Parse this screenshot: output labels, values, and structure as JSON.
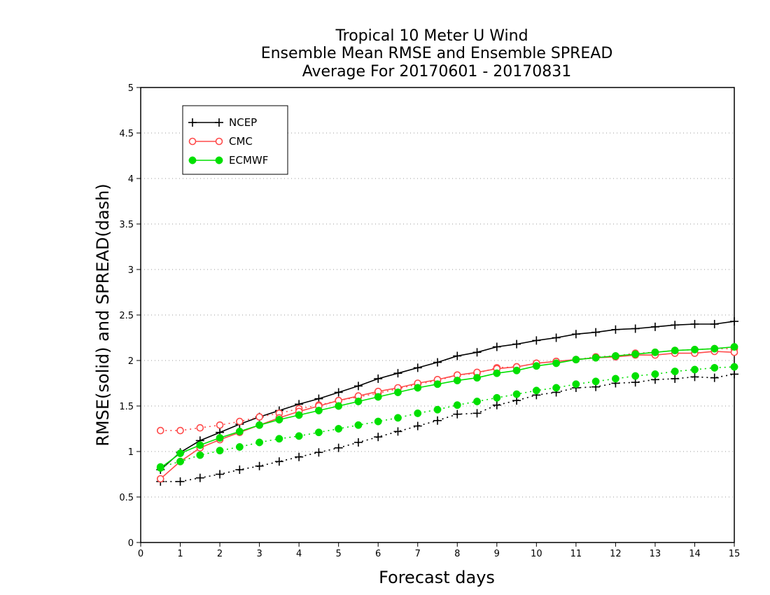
{
  "chart_data": {
    "type": "line",
    "title_lines": [
      "Tropical 10 Meter U Wind",
      "Ensemble Mean RMSE and Ensemble SPREAD",
      "Average For 20170601 - 20170831"
    ],
    "xlabel": "Forecast days",
    "ylabel": "RMSE(solid) and SPREAD(dash)",
    "xlim": [
      0,
      15
    ],
    "ylim": [
      0,
      5
    ],
    "x_ticks": [
      "0",
      "1",
      "2",
      "3",
      "4",
      "5",
      "6",
      "7",
      "8",
      "9",
      "10",
      "11",
      "12",
      "13",
      "14",
      "15"
    ],
    "y_ticks": [
      "0",
      "0.5",
      "1",
      "1.5",
      "2",
      "2.5",
      "3",
      "3.5",
      "4",
      "4.5",
      "5"
    ],
    "grid": "horizontal dotted",
    "legend_position": "top-left",
    "x": [
      0.5,
      1,
      1.5,
      2,
      2.5,
      3,
      3.5,
      4,
      4.5,
      5,
      5.5,
      6,
      6.5,
      7,
      7.5,
      8,
      8.5,
      9,
      9.5,
      10,
      10.5,
      11,
      11.5,
      12,
      12.5,
      13,
      13.5,
      14,
      14.5,
      15
    ],
    "series": [
      {
        "name": "NCEP",
        "color": "#000000",
        "marker": "plus",
        "rmse": [
          0.8,
          0.99,
          1.12,
          1.21,
          1.3,
          1.38,
          1.45,
          1.52,
          1.58,
          1.65,
          1.72,
          1.8,
          1.86,
          1.92,
          1.98,
          2.05,
          2.09,
          2.15,
          2.18,
          2.22,
          2.25,
          2.29,
          2.31,
          2.34,
          2.35,
          2.37,
          2.39,
          2.4,
          2.4,
          2.43
        ],
        "spread": [
          0.67,
          0.67,
          0.71,
          0.75,
          0.8,
          0.84,
          0.89,
          0.94,
          0.99,
          1.04,
          1.1,
          1.16,
          1.22,
          1.28,
          1.34,
          1.41,
          1.42,
          1.51,
          1.56,
          1.62,
          1.65,
          1.7,
          1.71,
          1.75,
          1.76,
          1.79,
          1.8,
          1.82,
          1.81,
          1.85
        ]
      },
      {
        "name": "CMC",
        "color": "#ff4a4a",
        "marker": "open-circle",
        "rmse": [
          0.7,
          0.89,
          1.04,
          1.13,
          1.21,
          1.29,
          1.37,
          1.44,
          1.5,
          1.56,
          1.61,
          1.66,
          1.7,
          1.75,
          1.79,
          1.84,
          1.87,
          1.91,
          1.93,
          1.97,
          1.99,
          2.01,
          2.03,
          2.04,
          2.06,
          2.06,
          2.08,
          2.08,
          2.1,
          2.09
        ],
        "spread": [
          1.23,
          1.23,
          1.26,
          1.29,
          1.33,
          1.38,
          1.42,
          1.47,
          1.51,
          1.56,
          1.6,
          1.64,
          1.69,
          1.74,
          1.78,
          1.84,
          1.86,
          1.92,
          1.93,
          1.97,
          1.99,
          2.01,
          2.04,
          2.05,
          2.08,
          2.09,
          2.11,
          2.12,
          2.13,
          2.13
        ]
      },
      {
        "name": "ECMWF",
        "color": "#00e000",
        "marker": "filled-circle",
        "rmse": [
          0.82,
          0.98,
          1.07,
          1.15,
          1.22,
          1.29,
          1.35,
          1.4,
          1.45,
          1.5,
          1.55,
          1.6,
          1.65,
          1.7,
          1.74,
          1.78,
          1.81,
          1.86,
          1.89,
          1.94,
          1.97,
          2.01,
          2.03,
          2.05,
          2.07,
          2.09,
          2.11,
          2.12,
          2.13,
          2.15
        ],
        "spread": [
          0.83,
          0.89,
          0.96,
          1.01,
          1.05,
          1.1,
          1.14,
          1.17,
          1.21,
          1.25,
          1.29,
          1.33,
          1.37,
          1.42,
          1.46,
          1.51,
          1.55,
          1.59,
          1.63,
          1.67,
          1.7,
          1.74,
          1.77,
          1.8,
          1.83,
          1.85,
          1.88,
          1.9,
          1.92,
          1.93
        ]
      }
    ]
  }
}
